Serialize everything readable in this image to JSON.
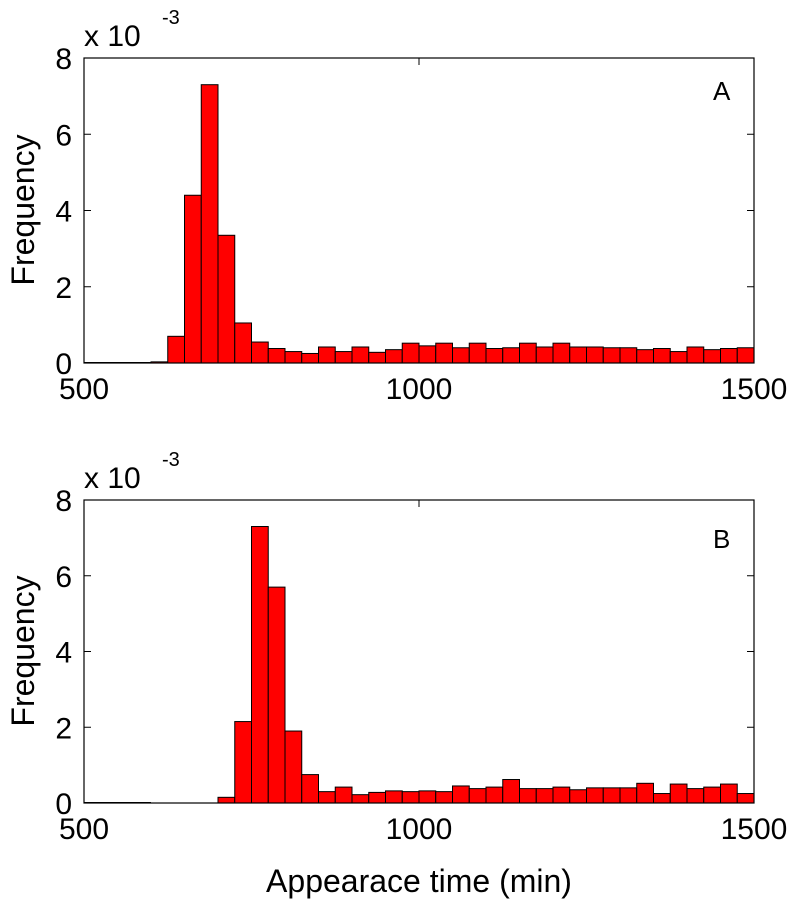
{
  "chart_data": [
    {
      "type": "bar",
      "panel_label": "A",
      "xlabel": "",
      "ylabel": "Frequency",
      "exponent_prefix": "x 10",
      "exponent_power": "-3",
      "xlim": [
        500,
        1500
      ],
      "ylim": [
        0,
        8
      ],
      "xticks": [
        "500",
        "1000",
        "1500"
      ],
      "yticks": [
        "0",
        "2",
        "4",
        "6",
        "8"
      ],
      "bin_start": 500,
      "bin_width": 25,
      "bar_color": "#ff0000",
      "edge_color": "#000000",
      "values": [
        0,
        0,
        0,
        0.01,
        0.03,
        0.7,
        4.4,
        7.3,
        3.35,
        1.05,
        0.55,
        0.38,
        0.3,
        0.25,
        0.42,
        0.3,
        0.42,
        0.28,
        0.35,
        0.52,
        0.45,
        0.52,
        0.4,
        0.52,
        0.38,
        0.4,
        0.52,
        0.42,
        0.52,
        0.42,
        0.42,
        0.4,
        0.4,
        0.35,
        0.38,
        0.3,
        0.42,
        0.35,
        0.38,
        0.4
      ]
    },
    {
      "type": "bar",
      "panel_label": "B",
      "xlabel": "Appearace time (min)",
      "ylabel": "Frequency",
      "exponent_prefix": "x 10",
      "exponent_power": "-3",
      "xlim": [
        500,
        1500
      ],
      "ylim": [
        0,
        8
      ],
      "xticks": [
        "500",
        "1000",
        "1500"
      ],
      "yticks": [
        "0",
        "2",
        "4",
        "6",
        "8"
      ],
      "bin_start": 500,
      "bin_width": 25,
      "bar_color": "#ff0000",
      "edge_color": "#000000",
      "values": [
        0,
        0,
        0,
        0,
        0,
        0,
        0,
        0,
        0.15,
        2.15,
        7.3,
        5.7,
        1.9,
        0.75,
        0.3,
        0.42,
        0.22,
        0.28,
        0.32,
        0.3,
        0.32,
        0.3,
        0.45,
        0.38,
        0.42,
        0.62,
        0.38,
        0.38,
        0.42,
        0.35,
        0.4,
        0.4,
        0.4,
        0.52,
        0.25,
        0.5,
        0.38,
        0.42,
        0.5,
        0.25
      ]
    }
  ]
}
